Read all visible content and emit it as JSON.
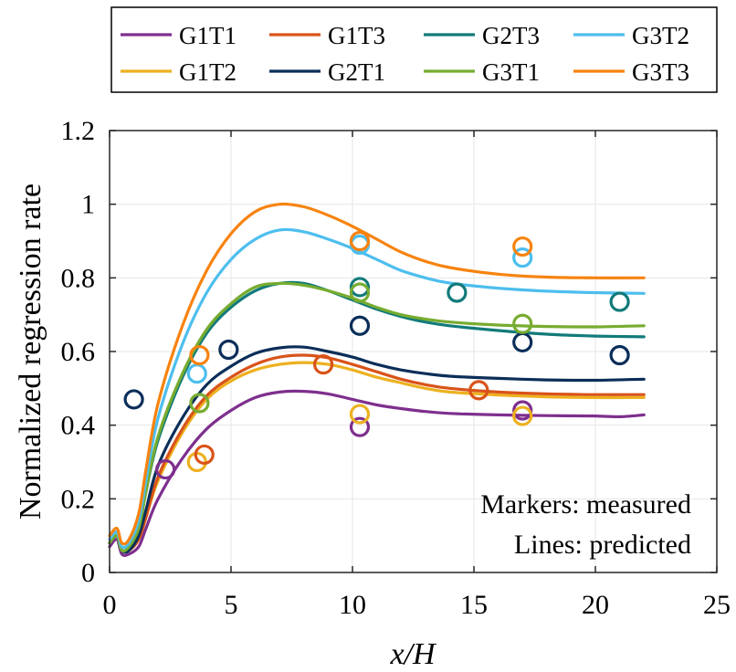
{
  "chart_data": {
    "type": "line",
    "title": "",
    "xlabel": "x/H",
    "ylabel": "Normalized regression rate",
    "xlim": [
      0,
      25
    ],
    "ylim": [
      0,
      1.2
    ],
    "xticks": [
      0,
      5,
      10,
      15,
      20,
      25
    ],
    "yticks": [
      0,
      0.2,
      0.4,
      0.6,
      0.8,
      1,
      1.2
    ],
    "xtick_labels": [
      "0",
      "5",
      "10",
      "15",
      "20",
      "25"
    ],
    "ytick_labels": [
      "0",
      "0.2",
      "0.4",
      "0.6",
      "0.8",
      "1",
      "1.2"
    ],
    "grid": true,
    "legend_position": "top, outside, 4 columns",
    "annotations": [
      "Markers: measured",
      "Lines: predicted"
    ],
    "series": [
      {
        "name": "G1T1",
        "color": "#7E2F8E",
        "predicted": [
          [
            0,
            0.07
          ],
          [
            0.3,
            0.09
          ],
          [
            0.5,
            0.05
          ],
          [
            0.8,
            0.05
          ],
          [
            1.2,
            0.07
          ],
          [
            1.5,
            0.12
          ],
          [
            2,
            0.2
          ],
          [
            3,
            0.31
          ],
          [
            4,
            0.39
          ],
          [
            5,
            0.44
          ],
          [
            6,
            0.475
          ],
          [
            7,
            0.49
          ],
          [
            8,
            0.492
          ],
          [
            9,
            0.485
          ],
          [
            10,
            0.47
          ],
          [
            11,
            0.455
          ],
          [
            12,
            0.445
          ],
          [
            13,
            0.437
          ],
          [
            14,
            0.432
          ],
          [
            16,
            0.428
          ],
          [
            18,
            0.426
          ],
          [
            20,
            0.425
          ],
          [
            21,
            0.423
          ],
          [
            22,
            0.428
          ]
        ],
        "measured": [
          [
            2.3,
            0.28
          ],
          [
            10.3,
            0.395
          ],
          [
            17,
            0.44
          ]
        ]
      },
      {
        "name": "G1T2",
        "color": "#EDB120",
        "predicted": [
          [
            0,
            0.08
          ],
          [
            0.3,
            0.1
          ],
          [
            0.5,
            0.06
          ],
          [
            0.8,
            0.06
          ],
          [
            1.2,
            0.09
          ],
          [
            1.5,
            0.15
          ],
          [
            2,
            0.25
          ],
          [
            3,
            0.38
          ],
          [
            4,
            0.47
          ],
          [
            5,
            0.52
          ],
          [
            6,
            0.55
          ],
          [
            7,
            0.565
          ],
          [
            8,
            0.57
          ],
          [
            9,
            0.565
          ],
          [
            10,
            0.55
          ],
          [
            11,
            0.53
          ],
          [
            12,
            0.515
          ],
          [
            13,
            0.5
          ],
          [
            14,
            0.49
          ],
          [
            16,
            0.482
          ],
          [
            18,
            0.477
          ],
          [
            20,
            0.475
          ],
          [
            22,
            0.475
          ]
        ],
        "measured": [
          [
            3.6,
            0.3
          ],
          [
            10.3,
            0.43
          ],
          [
            17,
            0.425
          ]
        ]
      },
      {
        "name": "G1T3",
        "color": "#D95319",
        "predicted": [
          [
            0,
            0.08
          ],
          [
            0.3,
            0.1
          ],
          [
            0.5,
            0.06
          ],
          [
            0.8,
            0.06
          ],
          [
            1.2,
            0.09
          ],
          [
            1.5,
            0.15
          ],
          [
            2,
            0.26
          ],
          [
            3,
            0.39
          ],
          [
            4,
            0.48
          ],
          [
            5,
            0.53
          ],
          [
            6,
            0.565
          ],
          [
            7,
            0.585
          ],
          [
            8,
            0.59
          ],
          [
            9,
            0.583
          ],
          [
            10,
            0.565
          ],
          [
            11,
            0.545
          ],
          [
            12,
            0.525
          ],
          [
            13,
            0.51
          ],
          [
            14,
            0.5
          ],
          [
            16,
            0.49
          ],
          [
            18,
            0.485
          ],
          [
            20,
            0.483
          ],
          [
            22,
            0.483
          ]
        ],
        "measured": [
          [
            3.9,
            0.32
          ],
          [
            8.8,
            0.565
          ],
          [
            15.2,
            0.495
          ]
        ]
      },
      {
        "name": "G2T1",
        "color": "#0B2E59",
        "predicted": [
          [
            0,
            0.08
          ],
          [
            0.3,
            0.1
          ],
          [
            0.5,
            0.06
          ],
          [
            0.8,
            0.06
          ],
          [
            1.2,
            0.1
          ],
          [
            1.5,
            0.17
          ],
          [
            2,
            0.29
          ],
          [
            3,
            0.42
          ],
          [
            4,
            0.51
          ],
          [
            5,
            0.56
          ],
          [
            6,
            0.595
          ],
          [
            7,
            0.61
          ],
          [
            8,
            0.612
          ],
          [
            9,
            0.6
          ],
          [
            10,
            0.585
          ],
          [
            11,
            0.565
          ],
          [
            12,
            0.55
          ],
          [
            13,
            0.54
          ],
          [
            14,
            0.533
          ],
          [
            16,
            0.527
          ],
          [
            18,
            0.523
          ],
          [
            20,
            0.522
          ],
          [
            22,
            0.525
          ]
        ],
        "measured": [
          [
            1,
            0.47
          ],
          [
            4.9,
            0.605
          ],
          [
            10.3,
            0.67
          ],
          [
            17,
            0.625
          ],
          [
            21,
            0.59
          ]
        ]
      },
      {
        "name": "G2T3",
        "color": "#127A7A",
        "predicted": [
          [
            0,
            0.08
          ],
          [
            0.3,
            0.1
          ],
          [
            0.5,
            0.06
          ],
          [
            0.8,
            0.07
          ],
          [
            1.2,
            0.12
          ],
          [
            1.5,
            0.22
          ],
          [
            2,
            0.36
          ],
          [
            3,
            0.53
          ],
          [
            4,
            0.65
          ],
          [
            5,
            0.72
          ],
          [
            6,
            0.765
          ],
          [
            7,
            0.785
          ],
          [
            8,
            0.785
          ],
          [
            9,
            0.765
          ],
          [
            10,
            0.74
          ],
          [
            11,
            0.715
          ],
          [
            12,
            0.695
          ],
          [
            13,
            0.68
          ],
          [
            14,
            0.67
          ],
          [
            16,
            0.657
          ],
          [
            18,
            0.647
          ],
          [
            20,
            0.642
          ],
          [
            22,
            0.64
          ]
        ],
        "measured": [
          [
            10.3,
            0.775
          ],
          [
            14.3,
            0.76
          ],
          [
            21,
            0.735
          ]
        ]
      },
      {
        "name": "G3T1",
        "color": "#77AC30",
        "predicted": [
          [
            0,
            0.08
          ],
          [
            0.3,
            0.1
          ],
          [
            0.5,
            0.06
          ],
          [
            0.8,
            0.07
          ],
          [
            1.2,
            0.12
          ],
          [
            1.5,
            0.22
          ],
          [
            2,
            0.37
          ],
          [
            3,
            0.54
          ],
          [
            4,
            0.66
          ],
          [
            5,
            0.73
          ],
          [
            6,
            0.775
          ],
          [
            7,
            0.785
          ],
          [
            8,
            0.78
          ],
          [
            9,
            0.765
          ],
          [
            10,
            0.745
          ],
          [
            11,
            0.72
          ],
          [
            12,
            0.7
          ],
          [
            13,
            0.688
          ],
          [
            14,
            0.68
          ],
          [
            16,
            0.672
          ],
          [
            18,
            0.668
          ],
          [
            20,
            0.667
          ],
          [
            22,
            0.67
          ]
        ],
        "measured": [
          [
            3.7,
            0.46
          ],
          [
            10.3,
            0.76
          ],
          [
            17,
            0.675
          ]
        ]
      },
      {
        "name": "G3T2",
        "color": "#4DBEEE",
        "predicted": [
          [
            0,
            0.09
          ],
          [
            0.3,
            0.11
          ],
          [
            0.5,
            0.07
          ],
          [
            0.8,
            0.08
          ],
          [
            1.2,
            0.14
          ],
          [
            1.5,
            0.25
          ],
          [
            2,
            0.42
          ],
          [
            3,
            0.62
          ],
          [
            4,
            0.76
          ],
          [
            5,
            0.85
          ],
          [
            6,
            0.905
          ],
          [
            7,
            0.93
          ],
          [
            8,
            0.925
          ],
          [
            9,
            0.905
          ],
          [
            10,
            0.88
          ],
          [
            11,
            0.85
          ],
          [
            12,
            0.82
          ],
          [
            13,
            0.8
          ],
          [
            14,
            0.786
          ],
          [
            16,
            0.772
          ],
          [
            18,
            0.764
          ],
          [
            20,
            0.76
          ],
          [
            22,
            0.758
          ]
        ],
        "measured": [
          [
            3.6,
            0.54
          ],
          [
            10.3,
            0.89
          ],
          [
            17,
            0.855
          ]
        ]
      },
      {
        "name": "G3T3",
        "color": "#F7830F",
        "predicted": [
          [
            0,
            0.1
          ],
          [
            0.3,
            0.12
          ],
          [
            0.5,
            0.08
          ],
          [
            0.8,
            0.09
          ],
          [
            1.2,
            0.16
          ],
          [
            1.5,
            0.28
          ],
          [
            2,
            0.46
          ],
          [
            3,
            0.67
          ],
          [
            4,
            0.82
          ],
          [
            5,
            0.92
          ],
          [
            6,
            0.98
          ],
          [
            7,
            1.0
          ],
          [
            8,
            0.993
          ],
          [
            9,
            0.97
          ],
          [
            10,
            0.94
          ],
          [
            11,
            0.905
          ],
          [
            12,
            0.87
          ],
          [
            13,
            0.845
          ],
          [
            14,
            0.828
          ],
          [
            16,
            0.81
          ],
          [
            18,
            0.802
          ],
          [
            20,
            0.8
          ],
          [
            22,
            0.8
          ]
        ],
        "measured": [
          [
            3.7,
            0.59
          ],
          [
            10.3,
            0.9
          ],
          [
            17,
            0.885
          ]
        ]
      }
    ]
  }
}
